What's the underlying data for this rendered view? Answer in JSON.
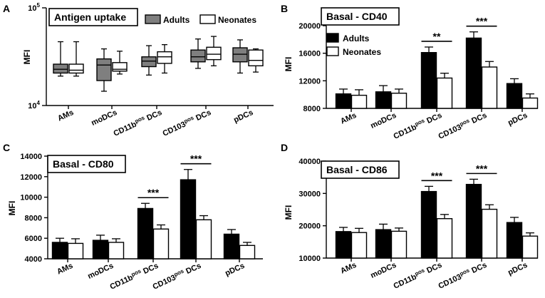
{
  "chart_data": [
    {
      "panel": "A",
      "type": "box",
      "title": "Antigen uptake",
      "ylabel": "MFI",
      "yscale": "log",
      "ylim": [
        10000,
        100000
      ],
      "yticks": [
        {
          "value": 10000,
          "base": "10",
          "exp": "4"
        },
        {
          "value": 100000,
          "base": "10",
          "exp": "5"
        }
      ],
      "categories": [
        {
          "main": "AMs",
          "sup": "",
          "end": ""
        },
        {
          "main": "moDCs",
          "sup": "",
          "end": ""
        },
        {
          "main": "CD11b",
          "sup": "pos",
          "end": " DCs"
        },
        {
          "main": "CD103",
          "sup": "pos",
          "end": " DCs"
        },
        {
          "main": "pDCs",
          "sup": "",
          "end": ""
        }
      ],
      "legend": {
        "position": "top-right",
        "labels": [
          "Adults",
          "Neonates"
        ]
      },
      "series": [
        {
          "name": "Adults",
          "color": "#7f7f7f",
          "boxes": [
            {
              "min": 20000,
              "q1": 21500,
              "median": 23500,
              "q3": 26500,
              "max": 45000
            },
            {
              "min": 14000,
              "q1": 18000,
              "median": 26000,
              "q3": 30000,
              "max": 38000
            },
            {
              "min": 20500,
              "q1": 25000,
              "median": 28500,
              "q3": 31500,
              "max": 41000
            },
            {
              "min": 24000,
              "q1": 28000,
              "median": 31500,
              "q3": 37000,
              "max": 48000
            },
            {
              "min": 21500,
              "q1": 28000,
              "median": 33500,
              "q3": 39000,
              "max": 47000
            }
          ]
        },
        {
          "name": "Neonates",
          "color": "#ffffff",
          "boxes": [
            {
              "min": 20000,
              "q1": 21500,
              "median": 23000,
              "q3": 26500,
              "max": 45000
            },
            {
              "min": 21000,
              "q1": 22500,
              "median": 23500,
              "q3": 27500,
              "max": 36000
            },
            {
              "min": 21500,
              "q1": 27000,
              "median": 31500,
              "q3": 35500,
              "max": 42000
            },
            {
              "min": 25500,
              "q1": 29500,
              "median": 33500,
              "q3": 39500,
              "max": 51000
            },
            {
              "min": 22000,
              "q1": 25500,
              "median": 29000,
              "q3": 37000,
              "max": 38000
            }
          ]
        }
      ],
      "significance": []
    },
    {
      "panel": "B",
      "type": "bar",
      "title": "Basal - CD40",
      "ylabel": "MFI",
      "ylim": [
        8000,
        20000
      ],
      "yticks": [
        8000,
        12000,
        16000,
        20000
      ],
      "categories": [
        {
          "main": "AMs",
          "sup": "",
          "end": ""
        },
        {
          "main": "moDCs",
          "sup": "",
          "end": ""
        },
        {
          "main": "CD11b",
          "sup": "pos",
          "end": " DCs"
        },
        {
          "main": "CD103",
          "sup": "pos",
          "end": " DCs"
        },
        {
          "main": "pDCs",
          "sup": "",
          "end": ""
        }
      ],
      "legend": {
        "position": "top-left",
        "labels": [
          "Adults",
          "Neonates"
        ]
      },
      "series": [
        {
          "name": "Adults",
          "color": "#000000",
          "values": [
            10100,
            10400,
            16100,
            18200,
            11600
          ],
          "errors": [
            700,
            900,
            800,
            900,
            700
          ]
        },
        {
          "name": "Neonates",
          "color": "#ffffff",
          "values": [
            9900,
            10200,
            12400,
            14000,
            9500
          ],
          "errors": [
            800,
            600,
            700,
            800,
            600
          ]
        }
      ],
      "significance": [
        {
          "category": 2,
          "label": "**"
        },
        {
          "category": 3,
          "label": "***"
        }
      ]
    },
    {
      "panel": "C",
      "type": "bar",
      "title": "Basal - CD80",
      "ylabel": "MFI",
      "ylim": [
        4000,
        14000
      ],
      "yticks": [
        4000,
        6000,
        8000,
        10000,
        12000,
        14000
      ],
      "categories": [
        {
          "main": "AMs",
          "sup": "",
          "end": ""
        },
        {
          "main": "moDCs",
          "sup": "",
          "end": ""
        },
        {
          "main": "CD11b",
          "sup": "pos",
          "end": " DCs"
        },
        {
          "main": "CD103",
          "sup": "pos",
          "end": " DCs"
        },
        {
          "main": "pDCs",
          "sup": "",
          "end": ""
        }
      ],
      "legend": null,
      "series": [
        {
          "name": "Adults",
          "color": "#000000",
          "values": [
            5600,
            5800,
            8900,
            11700,
            6400
          ],
          "errors": [
            400,
            500,
            500,
            1000,
            450
          ]
        },
        {
          "name": "Neonates",
          "color": "#ffffff",
          "values": [
            5500,
            5600,
            6900,
            7800,
            5300
          ],
          "errors": [
            450,
            350,
            400,
            400,
            300
          ]
        }
      ],
      "significance": [
        {
          "category": 2,
          "label": "***"
        },
        {
          "category": 3,
          "label": "***"
        }
      ]
    },
    {
      "panel": "D",
      "type": "bar",
      "title": "Basal - CD86",
      "ylabel": "MFI",
      "ylim": [
        10000,
        40000
      ],
      "yticks": [
        10000,
        20000,
        30000,
        40000
      ],
      "categories": [
        {
          "main": "AMs",
          "sup": "",
          "end": ""
        },
        {
          "main": "moDCs",
          "sup": "",
          "end": ""
        },
        {
          "main": "CD11b",
          "sup": "pos",
          "end": " DCs"
        },
        {
          "main": "CD103",
          "sup": "pos",
          "end": " DCs"
        },
        {
          "main": "pDCs",
          "sup": "",
          "end": ""
        }
      ],
      "legend": null,
      "series": [
        {
          "name": "Adults",
          "color": "#000000",
          "values": [
            18200,
            18800,
            30600,
            32800,
            21000
          ],
          "errors": [
            1300,
            1700,
            1600,
            1600,
            1600
          ]
        },
        {
          "name": "Neonates",
          "color": "#ffffff",
          "values": [
            17900,
            18300,
            22200,
            25100,
            16800
          ],
          "errors": [
            1300,
            1000,
            1300,
            1400,
            1000
          ]
        }
      ],
      "significance": [
        {
          "category": 2,
          "label": "***"
        },
        {
          "category": 3,
          "label": "***"
        }
      ]
    }
  ]
}
